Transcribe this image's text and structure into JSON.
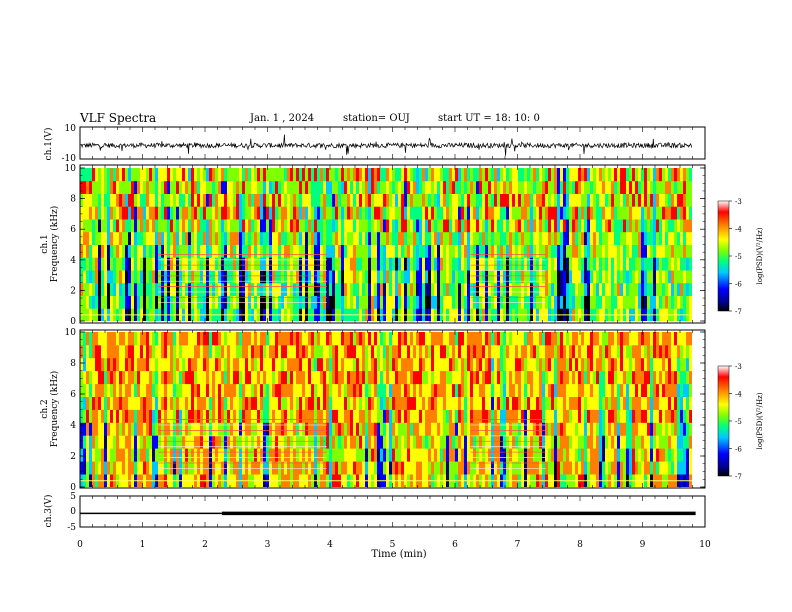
{
  "header": {
    "title": "VLF Spectra",
    "date": "Jan. 1 , 2024",
    "station": "station= OUJ",
    "start": "start UT = 18: 10: 0"
  },
  "colors": {
    "scale": [
      "#000000",
      "#00008b",
      "#0000ff",
      "#00c8ff",
      "#00ff80",
      "#80ff00",
      "#ffff00",
      "#ff8000",
      "#ff0000",
      "#ffffff"
    ],
    "trace": "#000000",
    "axis": "#000000"
  },
  "chart_data": [
    {
      "type": "line",
      "panel": "ch1-waveform",
      "ylabel": "ch.1(V)",
      "ylim": [
        -10,
        10
      ],
      "yticks": [
        "10",
        "-10"
      ],
      "xlim": [
        0,
        10
      ],
      "description_values": {
        "baseline": -1.5,
        "amplitude": 1.5
      }
    },
    {
      "type": "heatmap",
      "panel": "ch1-spectrogram",
      "ylabel_line1": "ch.1",
      "ylabel_line2": "Frequency (kHz)",
      "ylim": [
        0,
        10
      ],
      "yticks": [
        "0",
        "2",
        "4",
        "6",
        "8",
        "10"
      ],
      "xlim": [
        0,
        10
      ],
      "colorbar": {
        "label": "log(PSD)(V²/Hz)",
        "range": [
          -7,
          -3
        ],
        "ticks": [
          "-3",
          "-4",
          "-5",
          "-6",
          "-7"
        ]
      }
    },
    {
      "type": "heatmap",
      "panel": "ch2-spectrogram",
      "ylabel_line1": "ch.2",
      "ylabel_line2": "Frequency (kHz)",
      "ylim": [
        0,
        10
      ],
      "yticks": [
        "0",
        "2",
        "4",
        "6",
        "8",
        "10"
      ],
      "xlim": [
        0,
        10
      ],
      "colorbar": {
        "label": "log(PSD)(V²/Hz)",
        "range": [
          -7,
          -3
        ],
        "ticks": [
          "-3",
          "-4",
          "-5",
          "-6",
          "-7"
        ]
      }
    },
    {
      "type": "line",
      "panel": "ch3-trace",
      "ylabel": "ch.3(V)",
      "ylim": [
        -5,
        5
      ],
      "yticks": [
        "5",
        "0",
        "-5"
      ],
      "xlim": [
        0,
        10
      ],
      "x": [
        0,
        2.27,
        2.27,
        9.85
      ],
      "y": [
        -0.6,
        -0.6,
        -0.6,
        -0.6
      ],
      "thick_from": 2.27
    }
  ],
  "xaxis": {
    "label": "Time (min)",
    "ticks": [
      "0",
      "1",
      "2",
      "3",
      "4",
      "5",
      "6",
      "7",
      "8",
      "9",
      "10"
    ]
  }
}
